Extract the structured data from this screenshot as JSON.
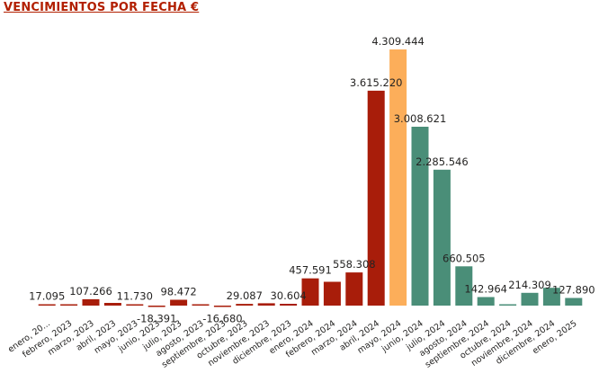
{
  "title": "VENCIMIENTOS POR FECHA €",
  "chart_data": {
    "type": "bar",
    "title": "VENCIMIENTOS POR FECHA €",
    "xlabel": "",
    "ylabel": "",
    "ylim": [
      -100000,
      4650000
    ],
    "grid": false,
    "legend": "none",
    "colors": {
      "past": "#a81d0a",
      "current": "#fcae5a",
      "future": "#4a8e78"
    },
    "categories": [
      "enero, 20...",
      "febrero, 2023",
      "marzo, 2023",
      "abril, 2023",
      "mayo, 2023",
      "junio, 2023",
      "julio, 2023",
      "agosto, 2023",
      "septiembre, 2023",
      "octubre, 2023",
      "noviembre, 2023",
      "diciembre, 2023",
      "enero, 2024",
      "febrero, 2024",
      "marzo, 2024",
      "abril, 2024",
      "mayo, 2024",
      "junio, 2024",
      "julio, 2024",
      "agosto, 2024",
      "septiembre, 2024",
      "octubre, 2024",
      "noviembre, 2024",
      "diciembre, 2024",
      "enero, 2025"
    ],
    "values": [
      17095,
      10000,
      107266,
      45000,
      11730,
      -18391,
      98472,
      8000,
      -16680,
      29087,
      40000,
      30604,
      457591,
      400000,
      558308,
      3615220,
      4309444,
      3008621,
      2285546,
      660505,
      142964,
      8000,
      214309,
      300000,
      127890
    ],
    "labels": [
      "17.095",
      "",
      "107.266",
      "",
      "11.730",
      "-18.391",
      "98.472",
      "",
      "-16.680",
      "29.087",
      "",
      "30.604",
      "457.591",
      "",
      "558.308",
      "3.615.220",
      "4.309.444",
      "3.008.621",
      "2.285.546",
      "660.505",
      "142.964",
      "",
      "214.309",
      "",
      "127.890"
    ],
    "groups": [
      "past",
      "past",
      "past",
      "past",
      "past",
      "past",
      "past",
      "past",
      "past",
      "past",
      "past",
      "past",
      "past",
      "past",
      "past",
      "past",
      "current",
      "future",
      "future",
      "future",
      "future",
      "future",
      "future",
      "future",
      "future"
    ]
  }
}
